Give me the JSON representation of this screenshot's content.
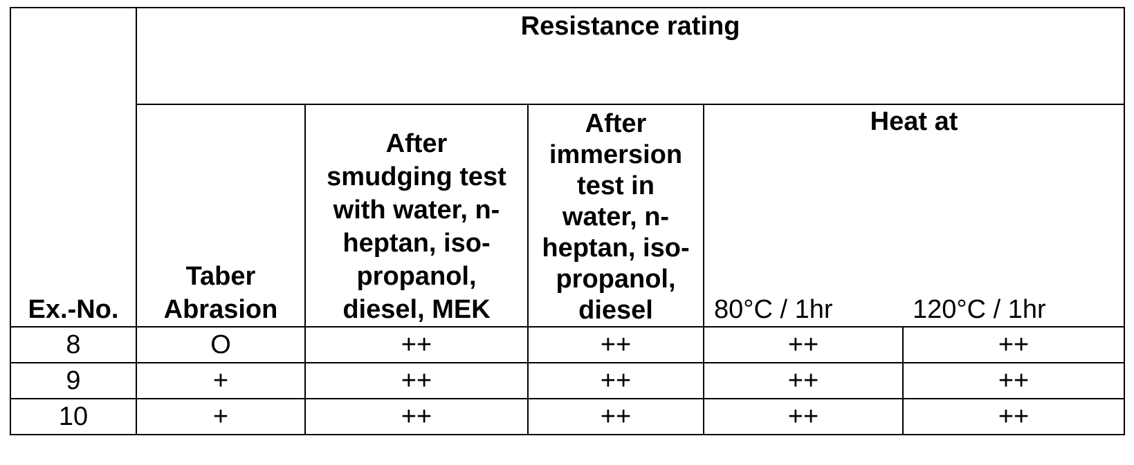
{
  "table": {
    "resistance_rating_header": "Resistance rating",
    "ex_no_header": "Ex.-No.",
    "taber_header": [
      "Taber",
      "Abrasion"
    ],
    "smudging_header": [
      "After",
      "smudging test",
      "with water, n-",
      "heptan, iso-",
      "propanol,",
      "diesel, MEK"
    ],
    "immersion_header": [
      "After",
      "immersion",
      "test in",
      "water, n-",
      "heptan, iso-",
      "propanol,",
      "diesel"
    ],
    "heat_header": "Heat at",
    "heat_80_header": "80°C / 1hr",
    "heat_120_header": "120°C / 1hr",
    "rows": [
      {
        "ex_no": "8",
        "taber": "O",
        "smudging": "++",
        "immersion": "++",
        "heat_80": "++",
        "heat_120": "++"
      },
      {
        "ex_no": "9",
        "taber": "+",
        "smudging": "++",
        "immersion": "++",
        "heat_80": "++",
        "heat_120": "++"
      },
      {
        "ex_no": "10",
        "taber": "+",
        "smudging": "++",
        "immersion": "++",
        "heat_80": "++",
        "heat_120": "++"
      }
    ]
  }
}
